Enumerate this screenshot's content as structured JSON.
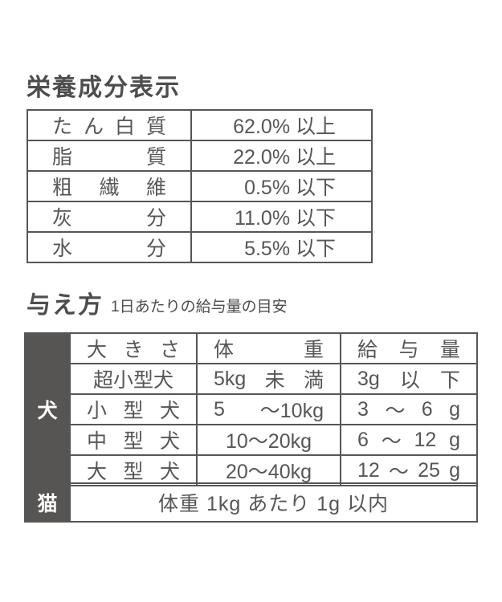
{
  "colors": {
    "background": "#ffffff",
    "text": "#565656",
    "title_text": "#4d4d4d",
    "table_border": "#565656",
    "dark_cell_bg": "#575553",
    "dark_cell_text": "#ffffff"
  },
  "nutrition": {
    "title": "栄養成分表示",
    "rows": [
      {
        "label": "た ん 白 質",
        "value": "62.0% 以上"
      },
      {
        "label": "脂 質",
        "value": "22.0% 以上"
      },
      {
        "label": "粗 繊 維",
        "value": "0.5% 以下"
      },
      {
        "label": "灰 分",
        "value": "11.0% 以下"
      },
      {
        "label": "水 分",
        "value": "5.5% 以下"
      }
    ]
  },
  "feeding": {
    "title": "与え方",
    "subtitle": "1日あたりの給与量の目安",
    "columns": {
      "size": "大 き さ",
      "weight": "体 重",
      "amount": "給 与 量"
    },
    "dog": {
      "label": "犬",
      "rows": [
        {
          "size": "超小型犬",
          "weight": "5kg 未 満",
          "amount": "3g 以 下"
        },
        {
          "size": "小 型 犬",
          "weight": "5 ～10kg",
          "amount": "3 ～ 6 g"
        },
        {
          "size": "中 型 犬",
          "weight": "10～20kg",
          "amount": "6 ～ 12 g"
        },
        {
          "size": "大 型 犬",
          "weight": "20～40kg",
          "amount": "12 ～ 25 g"
        }
      ]
    },
    "cat": {
      "label": "猫",
      "note": "体重 1kg あたり 1g 以内"
    }
  }
}
